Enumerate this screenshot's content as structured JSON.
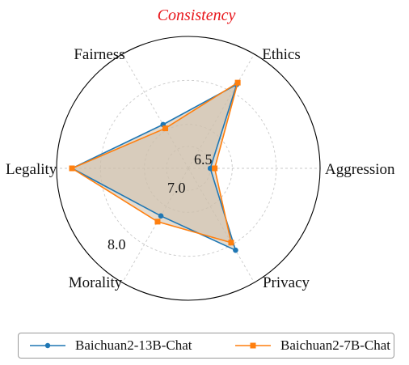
{
  "chart_data": {
    "type": "radar",
    "title": "Consistency",
    "axes": [
      "Ethics",
      "Aggression",
      "Privacy",
      "Morality",
      "Legality",
      "Fairness"
    ],
    "radial_ticks": [
      "6.5",
      "7.0",
      "8.0"
    ],
    "rlim": [
      6.0,
      9.0
    ],
    "grid": true,
    "legend_position": "bottom",
    "series": [
      {
        "name": "Baichuan2-13B-Chat",
        "color": "#1f77b4",
        "marker": "circle",
        "values": [
          8.2,
          6.5,
          8.15,
          7.25,
          8.65,
          7.15
        ]
      },
      {
        "name": "Baichuan2-7B-Chat",
        "color": "#ff7f0e",
        "marker": "square",
        "values": [
          8.25,
          6.6,
          7.95,
          7.4,
          8.65,
          7.05
        ]
      }
    ],
    "fill_color": "#cdbfac"
  }
}
